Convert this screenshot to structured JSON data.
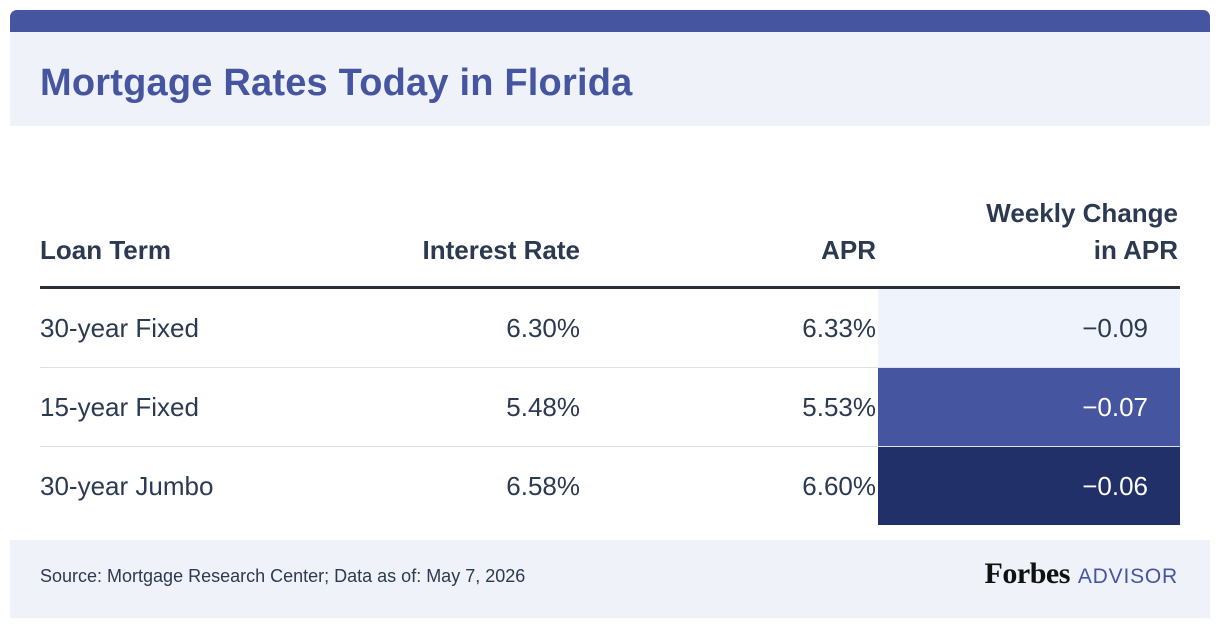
{
  "title": "Mortgage Rates Today in Florida",
  "columns": {
    "term": "Loan Term",
    "rate": "Interest Rate",
    "apr": "APR",
    "change_line1": "Weekly Change",
    "change_line2": "in APR"
  },
  "rows": [
    {
      "term": "30-year Fixed",
      "rate": "6.30%",
      "apr": "6.33%",
      "change": "−0.09"
    },
    {
      "term": "15-year Fixed",
      "rate": "5.48%",
      "apr": "5.53%",
      "change": "−0.07"
    },
    {
      "term": "30-year Jumbo",
      "rate": "6.58%",
      "apr": "6.60%",
      "change": "−0.06"
    }
  ],
  "source": "Source: Mortgage Research Center; Data as of: May 7, 2026",
  "brand": {
    "name": "Forbes",
    "sub": "ADVISOR"
  },
  "colors": {
    "accent": "#4655a0",
    "header_bg": "#eff2f8",
    "change_light": "#eff3fc",
    "change_mid": "#4655a0",
    "change_dark": "#22306a",
    "text": "#2b3a50"
  },
  "chart_data": {
    "type": "table",
    "title": "Mortgage Rates Today in Florida",
    "columns": [
      "Loan Term",
      "Interest Rate",
      "APR",
      "Weekly Change in APR"
    ],
    "rows": [
      [
        "30-year Fixed",
        6.3,
        6.33,
        -0.09
      ],
      [
        "15-year Fixed",
        5.48,
        5.53,
        -0.07
      ],
      [
        "30-year Jumbo",
        6.58,
        6.6,
        -0.06
      ]
    ]
  }
}
